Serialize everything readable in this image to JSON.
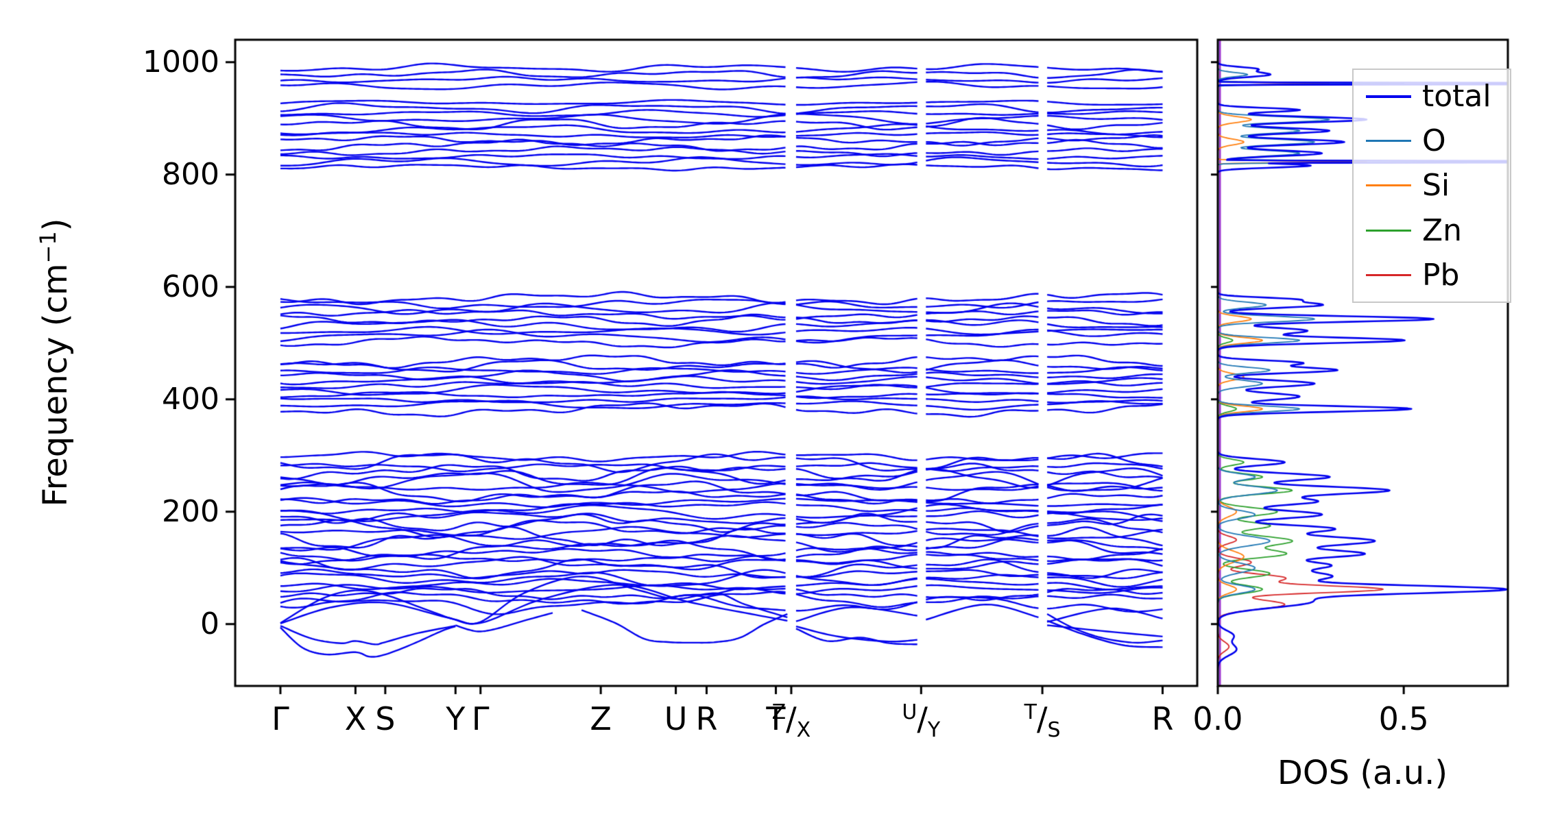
{
  "figure": {
    "background": "#ffffff",
    "axis_color": "#000000"
  },
  "chart_data": [
    {
      "type": "line",
      "name": "phonon-band-structure",
      "ylabel_parts": {
        "text": "Frequency (cm",
        "sup": "−1",
        "close": ")"
      },
      "ylim": [
        -110,
        1040
      ],
      "yticks": [
        0,
        200,
        400,
        600,
        800,
        1000
      ],
      "band_color": "#0000ee",
      "line_width": 2.4,
      "xticks": [
        {
          "x": 0.047,
          "label": "Γ"
        },
        {
          "x": 0.125,
          "label": "X"
        },
        {
          "x": 0.156,
          "label": "S"
        },
        {
          "x": 0.229,
          "label": "Y"
        },
        {
          "x": 0.255,
          "label": "Γ"
        },
        {
          "x": 0.38,
          "label": "Z"
        },
        {
          "x": 0.458,
          "label": "U"
        },
        {
          "x": 0.49,
          "label": "R"
        },
        {
          "x": 0.562,
          "label": "T"
        },
        {
          "x": 0.578,
          "sup": "Z",
          "sub": "X"
        },
        {
          "x": 0.713,
          "sup": "U",
          "sub": "Y"
        },
        {
          "x": 0.839,
          "sup": "T",
          "sub": "S"
        },
        {
          "x": 0.964,
          "label": "R"
        }
      ],
      "pieces": [
        [
          0.047,
          0.574
        ],
        [
          0.583,
          0.709
        ],
        [
          0.718,
          0.835
        ],
        [
          0.844,
          0.964
        ]
      ],
      "clusters": [
        {
          "count": 30,
          "fmin": 35,
          "fmax": 298,
          "amp_min": 8,
          "amp_max": 22,
          "clamp_min": 5
        },
        {
          "count": 11,
          "fmin": 382,
          "fmax": 468,
          "amp_min": 6,
          "amp_max": 14
        },
        {
          "count": 9,
          "fmin": 502,
          "fmax": 580,
          "amp_min": 6,
          "amp_max": 13
        },
        {
          "count": 13,
          "fmin": 813,
          "fmax": 928,
          "amp_min": 5,
          "amp_max": 12
        },
        {
          "count": 4,
          "fmin": 958,
          "fmax": 990,
          "amp_min": 4,
          "amp_max": 9
        }
      ],
      "extra_branches": [
        [
          [
            0.047,
            -6
          ],
          [
            0.07,
            -42
          ],
          [
            0.095,
            -54
          ],
          [
            0.125,
            -50
          ],
          [
            0.14,
            -58
          ],
          [
            0.156,
            -54
          ],
          [
            0.185,
            -35
          ],
          [
            0.215,
            -12
          ],
          [
            0.229,
            -4
          ]
        ],
        [
          [
            0.047,
            -3
          ],
          [
            0.08,
            -26
          ],
          [
            0.11,
            -34
          ],
          [
            0.125,
            -30
          ],
          [
            0.145,
            -36
          ],
          [
            0.156,
            -32
          ],
          [
            0.19,
            -16
          ],
          [
            0.229,
            -3
          ]
        ],
        [
          [
            0.229,
            -2
          ],
          [
            0.243,
            -10
          ],
          [
            0.255,
            -13
          ],
          [
            0.272,
            -8
          ],
          [
            0.3,
            6
          ],
          [
            0.33,
            20
          ]
        ],
        [
          [
            0.36,
            25
          ],
          [
            0.395,
            2
          ],
          [
            0.425,
            -26
          ],
          [
            0.45,
            -32
          ],
          [
            0.475,
            -33
          ],
          [
            0.5,
            -32
          ],
          [
            0.525,
            -24
          ],
          [
            0.55,
            0
          ],
          [
            0.574,
            18
          ]
        ],
        [
          [
            0.583,
            -4
          ],
          [
            0.62,
            -20
          ],
          [
            0.655,
            -28
          ],
          [
            0.685,
            -31
          ],
          [
            0.709,
            -28
          ]
        ],
        [
          [
            0.583,
            -8
          ],
          [
            0.615,
            -30
          ],
          [
            0.65,
            -24
          ],
          [
            0.68,
            -34
          ],
          [
            0.709,
            -36
          ]
        ],
        [
          [
            0.844,
            18
          ],
          [
            0.87,
            -6
          ],
          [
            0.9,
            -24
          ],
          [
            0.935,
            -33
          ],
          [
            0.964,
            -29
          ]
        ],
        [
          [
            0.844,
            6
          ],
          [
            0.885,
            -20
          ],
          [
            0.925,
            -38
          ],
          [
            0.964,
            -41
          ]
        ],
        [
          [
            0.844,
            -2
          ],
          [
            0.9,
            -12
          ],
          [
            0.964,
            -22
          ]
        ],
        [
          [
            0.047,
            2
          ],
          [
            0.09,
            45
          ],
          [
            0.125,
            60
          ],
          [
            0.156,
            52
          ],
          [
            0.2,
            25
          ],
          [
            0.229,
            8
          ],
          [
            0.255,
            4
          ],
          [
            0.3,
            55
          ],
          [
            0.36,
            85
          ],
          [
            0.42,
            60
          ],
          [
            0.458,
            45
          ],
          [
            0.5,
            55
          ],
          [
            0.53,
            35
          ],
          [
            0.574,
            12
          ]
        ],
        [
          [
            0.047,
            1
          ],
          [
            0.1,
            30
          ],
          [
            0.156,
            38
          ],
          [
            0.22,
            12
          ],
          [
            0.255,
            2
          ],
          [
            0.32,
            45
          ],
          [
            0.4,
            70
          ],
          [
            0.47,
            40
          ],
          [
            0.53,
            20
          ],
          [
            0.574,
            6
          ]
        ],
        [
          [
            0.583,
            5
          ],
          [
            0.64,
            30
          ],
          [
            0.709,
            15
          ]
        ],
        [
          [
            0.718,
            8
          ],
          [
            0.78,
            35
          ],
          [
            0.835,
            12
          ]
        ],
        [
          [
            0.844,
            4
          ],
          [
            0.91,
            28
          ],
          [
            0.964,
            10
          ]
        ]
      ]
    },
    {
      "type": "line",
      "name": "phonon-dos",
      "xlabel": "DOS (a.u.)",
      "xlim": [
        0,
        0.78
      ],
      "xticks": [
        {
          "x": 0.0,
          "label": "0.0"
        },
        {
          "x": 0.5,
          "label": "0.5"
        }
      ],
      "zero_line": {
        "x": 0.006,
        "color": "#9932cc"
      },
      "legend": [
        {
          "label": "total",
          "color": "#0000ee",
          "lw": 4
        },
        {
          "label": "O",
          "color": "#1f77b4",
          "lw": 3
        },
        {
          "label": "Si",
          "color": "#ff7f0e",
          "lw": 3
        },
        {
          "label": "Zn",
          "color": "#2ca02c",
          "lw": 3
        },
        {
          "label": "Pb",
          "color": "#d62728",
          "lw": 3
        }
      ],
      "series": [
        {
          "name": "Pb",
          "color": "#d62728",
          "lw": 1.8,
          "peaks": [
            [
              -40,
              0.03,
              12
            ],
            [
              35,
              0.18,
              12
            ],
            [
              62,
              0.44,
              9
            ],
            [
              82,
              0.18,
              10
            ],
            [
              110,
              0.09,
              10
            ],
            [
              150,
              0.05,
              9
            ]
          ]
        },
        {
          "name": "Zn",
          "color": "#2ca02c",
          "lw": 1.8,
          "peaks": [
            [
              62,
              0.12,
              10
            ],
            [
              90,
              0.14,
              10
            ],
            [
              125,
              0.18,
              10
            ],
            [
              148,
              0.2,
              12
            ],
            [
              175,
              0.14,
              9
            ],
            [
              200,
              0.16,
              10
            ],
            [
              238,
              0.2,
              9
            ],
            [
              262,
              0.12,
              8
            ],
            [
              288,
              0.07,
              7
            ],
            [
              383,
              0.05,
              7
            ],
            [
              505,
              0.04,
              6
            ]
          ]
        },
        {
          "name": "Si",
          "color": "#ff7f0e",
          "lw": 1.8,
          "peaks": [
            [
              62,
              0.05,
              10
            ],
            [
              120,
              0.07,
              14
            ],
            [
              200,
              0.05,
              12
            ],
            [
              383,
              0.12,
              7
            ],
            [
              440,
              0.07,
              8
            ],
            [
              505,
              0.12,
              7
            ],
            [
              543,
              0.09,
              7
            ],
            [
              823,
              0.4,
              2
            ],
            [
              858,
              0.07,
              7
            ],
            [
              898,
              0.09,
              7
            ],
            [
              962,
              0.3,
              2
            ]
          ]
        },
        {
          "name": "O",
          "color": "#1f77b4",
          "lw": 1.8,
          "peaks": [
            [
              62,
              0.1,
              10
            ],
            [
              100,
              0.1,
              12
            ],
            [
              148,
              0.14,
              12
            ],
            [
              195,
              0.1,
              10
            ],
            [
              238,
              0.16,
              10
            ],
            [
              262,
              0.1,
              8
            ],
            [
              383,
              0.22,
              7
            ],
            [
              428,
              0.12,
              8
            ],
            [
              452,
              0.14,
              7
            ],
            [
              505,
              0.22,
              7
            ],
            [
              543,
              0.26,
              7
            ],
            [
              568,
              0.13,
              7
            ],
            [
              823,
              0.85,
              2
            ],
            [
              838,
              0.22,
              7
            ],
            [
              858,
              0.26,
              7
            ],
            [
              878,
              0.22,
              7
            ],
            [
              898,
              0.3,
              7
            ],
            [
              962,
              0.5,
              2
            ],
            [
              978,
              0.08,
              5
            ]
          ]
        },
        {
          "name": "total",
          "color": "#0000ee",
          "lw": 2.6,
          "peaks": [
            [
              -45,
              0.05,
              15
            ],
            [
              -20,
              0.04,
              12
            ],
            [
              40,
              0.25,
              15
            ],
            [
              62,
              0.74,
              10
            ],
            [
              85,
              0.3,
              12
            ],
            [
              105,
              0.28,
              10
            ],
            [
              125,
              0.38,
              10
            ],
            [
              148,
              0.42,
              12
            ],
            [
              170,
              0.3,
              9
            ],
            [
              195,
              0.28,
              10
            ],
            [
              218,
              0.26,
              9
            ],
            [
              238,
              0.46,
              10
            ],
            [
              262,
              0.3,
              9
            ],
            [
              288,
              0.18,
              8
            ],
            [
              383,
              0.52,
              7
            ],
            [
              405,
              0.22,
              9
            ],
            [
              428,
              0.26,
              8
            ],
            [
              452,
              0.32,
              7
            ],
            [
              465,
              0.22,
              6
            ],
            [
              505,
              0.5,
              7
            ],
            [
              522,
              0.24,
              8
            ],
            [
              543,
              0.58,
              7
            ],
            [
              568,
              0.28,
              7
            ],
            [
              578,
              0.18,
              5
            ],
            [
              816,
              0.25,
              5
            ],
            [
              823,
              2.6,
              1.2
            ],
            [
              838,
              0.28,
              7
            ],
            [
              858,
              0.34,
              7
            ],
            [
              878,
              0.3,
              7
            ],
            [
              898,
              0.4,
              7
            ],
            [
              915,
              0.22,
              5
            ],
            [
              962,
              2.6,
              1.2
            ],
            [
              978,
              0.14,
              6
            ],
            [
              988,
              0.1,
              5
            ]
          ]
        }
      ]
    }
  ]
}
